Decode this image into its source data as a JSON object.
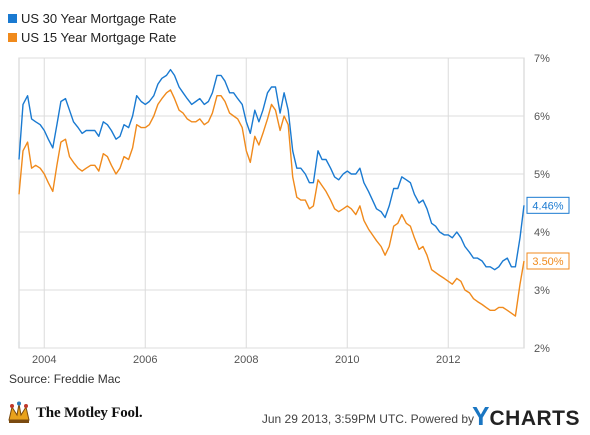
{
  "legend": [
    {
      "label": "US 30 Year Mortgage Rate",
      "color": "#1a7ad1"
    },
    {
      "label": "US 15 Year Mortgage Rate",
      "color": "#f08a1c"
    }
  ],
  "source": "Source: Freddie Mac",
  "footer": {
    "brand": "The Motley Fool.",
    "timestamp": "Jun 29 2013, 3:59PM UTC.",
    "powered_by": "Powered by",
    "ycharts_y": "Y",
    "ycharts_rest": "CHARTS"
  },
  "chart_data": {
    "type": "line",
    "title": "",
    "xlabel": "",
    "ylabel": "",
    "xlim": [
      2003.5,
      2013.5
    ],
    "ylim": [
      2,
      7
    ],
    "x_ticks": [
      2004,
      2006,
      2008,
      2010,
      2012
    ],
    "x_tick_labels": [
      "2004",
      "2006",
      "2008",
      "2010",
      "2012"
    ],
    "y_ticks": [
      2,
      3,
      4,
      5,
      6,
      7
    ],
    "y_tick_labels": [
      "2%",
      "3%",
      "4%",
      "5%",
      "6%",
      "7%"
    ],
    "y_axis_side": "right",
    "grid": true,
    "legend_position": "top-left",
    "series": [
      {
        "name": "US 30 Year Mortgage Rate",
        "color": "#1a7ad1",
        "end_label": "4.46%",
        "x": [
          2003.5,
          2003.58,
          2003.67,
          2003.75,
          2003.83,
          2003.92,
          2004.0,
          2004.08,
          2004.17,
          2004.25,
          2004.33,
          2004.42,
          2004.5,
          2004.58,
          2004.67,
          2004.75,
          2004.83,
          2004.92,
          2005.0,
          2005.08,
          2005.17,
          2005.25,
          2005.33,
          2005.42,
          2005.5,
          2005.58,
          2005.67,
          2005.75,
          2005.83,
          2005.92,
          2006.0,
          2006.08,
          2006.17,
          2006.25,
          2006.33,
          2006.42,
          2006.5,
          2006.58,
          2006.67,
          2006.75,
          2006.83,
          2006.92,
          2007.0,
          2007.08,
          2007.17,
          2007.25,
          2007.33,
          2007.42,
          2007.5,
          2007.58,
          2007.67,
          2007.75,
          2007.83,
          2007.92,
          2008.0,
          2008.08,
          2008.17,
          2008.25,
          2008.33,
          2008.42,
          2008.5,
          2008.58,
          2008.67,
          2008.75,
          2008.83,
          2008.92,
          2009.0,
          2009.08,
          2009.17,
          2009.25,
          2009.33,
          2009.42,
          2009.5,
          2009.58,
          2009.67,
          2009.75,
          2009.83,
          2009.92,
          2010.0,
          2010.08,
          2010.17,
          2010.25,
          2010.33,
          2010.42,
          2010.5,
          2010.58,
          2010.67,
          2010.75,
          2010.83,
          2010.92,
          2011.0,
          2011.08,
          2011.17,
          2011.25,
          2011.33,
          2011.42,
          2011.5,
          2011.58,
          2011.67,
          2011.75,
          2011.83,
          2011.92,
          2012.0,
          2012.08,
          2012.17,
          2012.25,
          2012.33,
          2012.42,
          2012.5,
          2012.58,
          2012.67,
          2012.75,
          2012.83,
          2012.92,
          2013.0,
          2013.08,
          2013.17,
          2013.25,
          2013.33,
          2013.42,
          2013.5
        ],
        "y": [
          5.25,
          6.2,
          6.35,
          5.95,
          5.9,
          5.85,
          5.75,
          5.6,
          5.45,
          5.85,
          6.25,
          6.3,
          6.1,
          5.9,
          5.8,
          5.7,
          5.75,
          5.75,
          5.75,
          5.65,
          5.9,
          5.85,
          5.75,
          5.6,
          5.65,
          5.85,
          5.8,
          6.0,
          6.35,
          6.25,
          6.2,
          6.25,
          6.35,
          6.55,
          6.65,
          6.7,
          6.8,
          6.7,
          6.5,
          6.4,
          6.3,
          6.2,
          6.25,
          6.3,
          6.2,
          6.25,
          6.4,
          6.7,
          6.7,
          6.6,
          6.4,
          6.4,
          6.3,
          6.2,
          5.9,
          5.7,
          6.1,
          5.9,
          6.1,
          6.4,
          6.5,
          6.5,
          6.05,
          6.4,
          6.1,
          5.4,
          5.1,
          5.1,
          5.0,
          4.85,
          4.85,
          5.4,
          5.25,
          5.25,
          5.1,
          4.95,
          4.9,
          5.0,
          5.05,
          5.0,
          5.0,
          5.1,
          4.85,
          4.7,
          4.55,
          4.4,
          4.35,
          4.25,
          4.45,
          4.75,
          4.75,
          4.95,
          4.9,
          4.85,
          4.65,
          4.5,
          4.55,
          4.4,
          4.15,
          4.1,
          4.0,
          3.95,
          3.95,
          3.9,
          4.0,
          3.9,
          3.75,
          3.65,
          3.55,
          3.55,
          3.5,
          3.4,
          3.4,
          3.35,
          3.4,
          3.5,
          3.55,
          3.4,
          3.4,
          3.9,
          4.46
        ]
      },
      {
        "name": "US 15 Year Mortgage Rate",
        "color": "#f08a1c",
        "end_label": "3.50%",
        "x": [
          2003.5,
          2003.58,
          2003.67,
          2003.75,
          2003.83,
          2003.92,
          2004.0,
          2004.08,
          2004.17,
          2004.25,
          2004.33,
          2004.42,
          2004.5,
          2004.58,
          2004.67,
          2004.75,
          2004.83,
          2004.92,
          2005.0,
          2005.08,
          2005.17,
          2005.25,
          2005.33,
          2005.42,
          2005.5,
          2005.58,
          2005.67,
          2005.75,
          2005.83,
          2005.92,
          2006.0,
          2006.08,
          2006.17,
          2006.25,
          2006.33,
          2006.42,
          2006.5,
          2006.58,
          2006.67,
          2006.75,
          2006.83,
          2006.92,
          2007.0,
          2007.08,
          2007.17,
          2007.25,
          2007.33,
          2007.42,
          2007.5,
          2007.58,
          2007.67,
          2007.75,
          2007.83,
          2007.92,
          2008.0,
          2008.08,
          2008.17,
          2008.25,
          2008.33,
          2008.42,
          2008.5,
          2008.58,
          2008.67,
          2008.75,
          2008.83,
          2008.92,
          2009.0,
          2009.08,
          2009.17,
          2009.25,
          2009.33,
          2009.42,
          2009.5,
          2009.58,
          2009.67,
          2009.75,
          2009.83,
          2009.92,
          2010.0,
          2010.08,
          2010.17,
          2010.25,
          2010.33,
          2010.42,
          2010.5,
          2010.58,
          2010.67,
          2010.75,
          2010.83,
          2010.92,
          2011.0,
          2011.08,
          2011.17,
          2011.25,
          2011.33,
          2011.42,
          2011.5,
          2011.58,
          2011.67,
          2011.75,
          2011.83,
          2011.92,
          2012.0,
          2012.08,
          2012.17,
          2012.25,
          2012.33,
          2012.42,
          2012.5,
          2012.58,
          2012.67,
          2012.75,
          2012.83,
          2012.92,
          2013.0,
          2013.08,
          2013.17,
          2013.25,
          2013.33,
          2013.42,
          2013.5
        ],
        "y": [
          4.65,
          5.4,
          5.55,
          5.1,
          5.15,
          5.1,
          5.0,
          4.85,
          4.7,
          5.15,
          5.55,
          5.6,
          5.3,
          5.2,
          5.1,
          5.05,
          5.1,
          5.15,
          5.15,
          5.05,
          5.35,
          5.3,
          5.15,
          5.0,
          5.1,
          5.3,
          5.25,
          5.45,
          5.85,
          5.8,
          5.8,
          5.85,
          6.0,
          6.2,
          6.3,
          6.4,
          6.45,
          6.3,
          6.1,
          6.05,
          5.95,
          5.9,
          5.9,
          5.95,
          5.85,
          5.9,
          6.05,
          6.35,
          6.35,
          6.25,
          6.05,
          6.0,
          5.95,
          5.8,
          5.4,
          5.2,
          5.65,
          5.5,
          5.7,
          5.95,
          6.2,
          6.1,
          5.75,
          6.0,
          5.85,
          4.95,
          4.6,
          4.55,
          4.55,
          4.4,
          4.45,
          4.9,
          4.8,
          4.7,
          4.55,
          4.4,
          4.35,
          4.4,
          4.45,
          4.4,
          4.3,
          4.45,
          4.2,
          4.05,
          3.95,
          3.85,
          3.75,
          3.6,
          3.75,
          4.1,
          4.15,
          4.3,
          4.15,
          4.1,
          3.9,
          3.7,
          3.75,
          3.6,
          3.35,
          3.3,
          3.25,
          3.2,
          3.15,
          3.1,
          3.2,
          3.15,
          3.0,
          2.95,
          2.85,
          2.8,
          2.75,
          2.7,
          2.65,
          2.65,
          2.7,
          2.7,
          2.65,
          2.6,
          2.55,
          3.1,
          3.5
        ]
      }
    ]
  }
}
